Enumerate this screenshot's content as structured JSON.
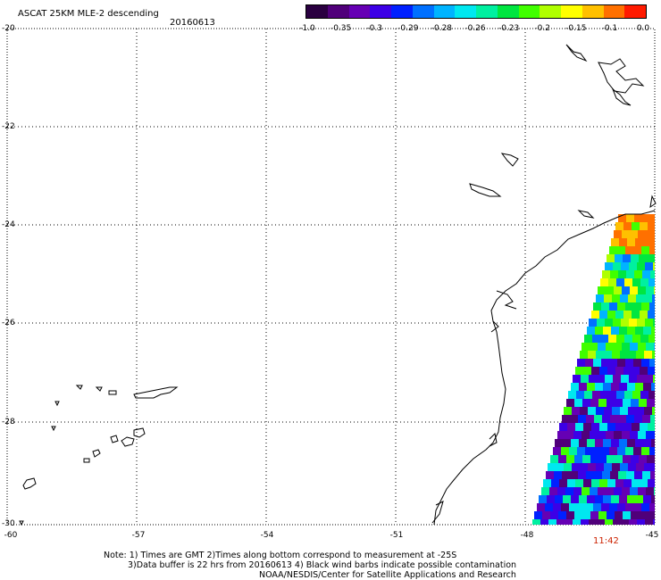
{
  "header": {
    "title": "ASCAT 25KM MLE-2 descending",
    "date": "20160613"
  },
  "colorbar": {
    "ticks": [
      "-1.0",
      "-0.35",
      "-0.3",
      "-0.29",
      "-0.28",
      "-0.26",
      "-0.23",
      "-0.2",
      "-0.15",
      "-0.1",
      "0.0"
    ],
    "colors": [
      "#2a0040",
      "#50007a",
      "#6600b4",
      "#3c00e6",
      "#0020ff",
      "#0070ff",
      "#00b4ff",
      "#00e8f0",
      "#00f0a0",
      "#00e640",
      "#40ff00",
      "#b0ff00",
      "#ffff00",
      "#ffc000",
      "#ff7000",
      "#ff1a00"
    ]
  },
  "axes": {
    "y_labels": [
      "-20",
      "-22",
      "-24",
      "-26",
      "-28",
      "-30"
    ],
    "x_labels": [
      "-60",
      "-57",
      "-54",
      "-51",
      "-48",
      "-45"
    ]
  },
  "time_marker": {
    "label": "11:42",
    "color": "#cc2200"
  },
  "notes": {
    "line1": "Note: 1) Times are GMT 2)Times along bottom correspond to measurement at -25S",
    "line2": "3)Data buffer is 22 hrs from 20160613 4) Black wind barbs indicate possible contamination",
    "line3": "NOAA/NESDIS/Center for Satellite Applications and Research"
  }
}
